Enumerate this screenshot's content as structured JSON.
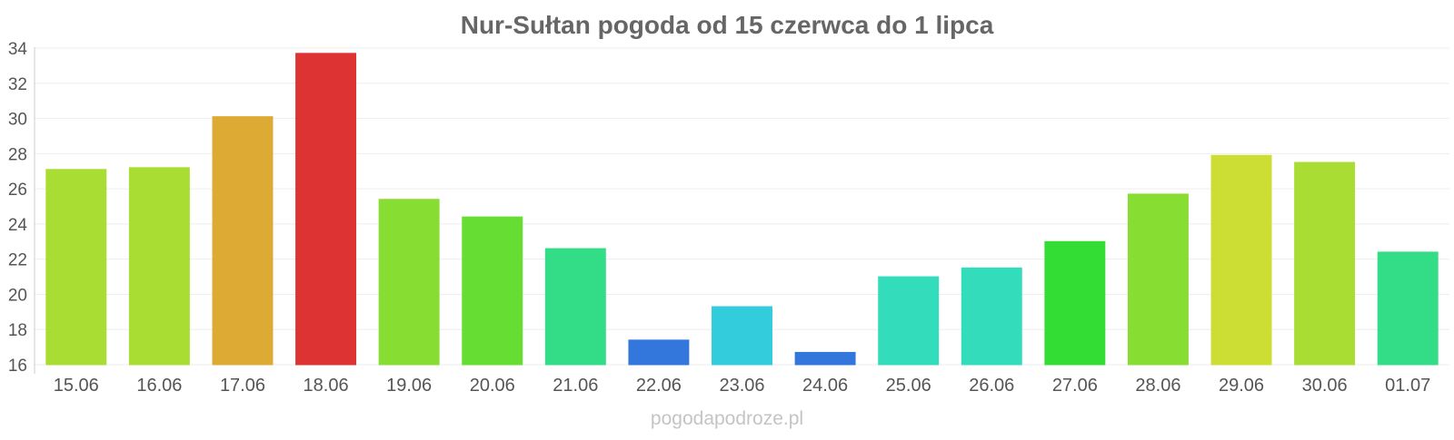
{
  "chart_data": {
    "type": "bar",
    "title": "Nur-Sułtan pogoda od 15 czerwca do 1 lipca",
    "xlabel": "",
    "ylabel": "",
    "categories": [
      "15.06",
      "16.06",
      "17.06",
      "18.06",
      "19.06",
      "20.06",
      "21.06",
      "22.06",
      "23.06",
      "24.06",
      "25.06",
      "26.06",
      "27.06",
      "28.06",
      "29.06",
      "30.06",
      "01.07"
    ],
    "values": [
      27.1,
      27.2,
      30.1,
      33.7,
      25.4,
      24.4,
      22.6,
      17.4,
      19.3,
      16.7,
      21.0,
      21.5,
      23.0,
      25.7,
      27.9,
      27.5,
      22.4
    ],
    "colors": [
      "#aadd33",
      "#aadd33",
      "#ddaa33",
      "#dd3333",
      "#88dd33",
      "#66dd33",
      "#33dd88",
      "#3377dd",
      "#33ccdd",
      "#3377dd",
      "#33ddbb",
      "#33ddbb",
      "#33dd33",
      "#88dd33",
      "#ccdd33",
      "#aadd33",
      "#33dd88"
    ],
    "ylim": [
      16,
      34
    ],
    "yticks": [
      16,
      18,
      20,
      22,
      24,
      26,
      28,
      30,
      32,
      34
    ],
    "grid": true,
    "legend": "none"
  },
  "footer": {
    "credit": "pogodapodroze.pl"
  }
}
